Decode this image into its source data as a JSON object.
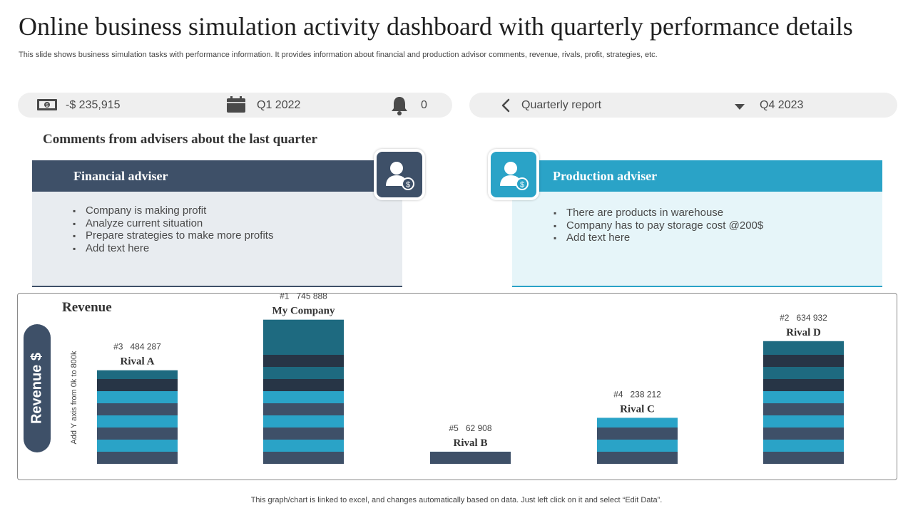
{
  "header": {
    "title": "Online business simulation activity dashboard with quarterly performance details",
    "subtitle": "This slide shows business simulation tasks with performance information. It provides information about financial and production advisor comments, revenue, rivals, profit, strategies, etc."
  },
  "status_bar": {
    "balance": "-$ 235,915",
    "quarter": "Q1 2022",
    "notifications": "0",
    "report_label": "Quarterly report",
    "report_period": "Q4 2023"
  },
  "comments": {
    "heading": "Comments from advisers about the last quarter",
    "financial": {
      "title": "Financial adviser",
      "items": [
        "Company is making profit",
        "Analyze current situation",
        "Prepare strategies to make more profits",
        "Add text here"
      ]
    },
    "production": {
      "title": "Production adviser",
      "items": [
        "There are products in warehouse",
        "Company has to pay storage cost @200$",
        "Add text here"
      ]
    }
  },
  "chart_data": {
    "type": "bar",
    "title": "Revenue",
    "ylabel": "Revenue $",
    "y_note": "Add Y axis from 0k to 800k",
    "ylim": [
      0,
      800000
    ],
    "categories": [
      "Rival A",
      "My Company",
      "Rival B",
      "Rival C",
      "Rival D"
    ],
    "values": [
      484287,
      745888,
      62908,
      238212,
      634932
    ],
    "data_labels": [
      "#3   484 287",
      "#1   745 888",
      "#5   62 908",
      "#4   238 212",
      "#2   634 932"
    ]
  },
  "colors": {
    "dark": "#3e5068",
    "accent": "#2aa3c7",
    "teal": "#1e6a80",
    "navy": "#273546"
  },
  "footer": {
    "note": "This graph/chart is linked to excel,  and changes automatically based on data. Just left click on it and select “Edit Data”."
  }
}
